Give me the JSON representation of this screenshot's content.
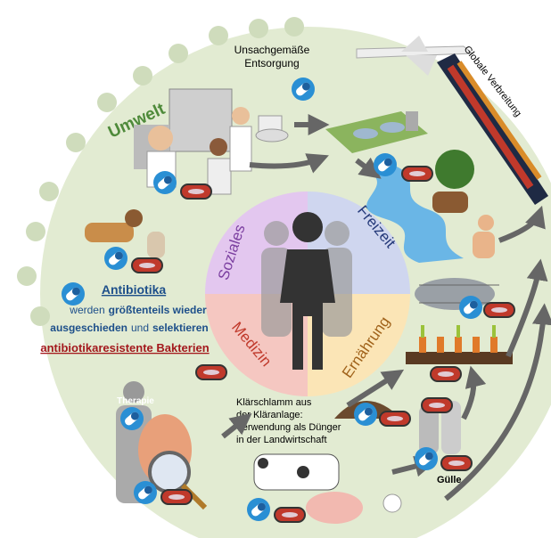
{
  "environment": "Umwelt",
  "disposal": [
    "Unsachgemäße",
    "Entsorgung"
  ],
  "global_spread": "Globale Verbreitung",
  "quadrants": [
    "Soziales",
    "Freizeit",
    "Medizin",
    "Ernährung"
  ],
  "note": {
    "title": "Antibiotika",
    "line2": [
      "werden",
      "größtenteils wieder"
    ],
    "line3": [
      "ausgeschieden",
      "und",
      "selektieren"
    ],
    "line4": "antibiotikaresistente Bakterien"
  },
  "therapy": "Therapie",
  "sludge": [
    "Klärschlamm aus",
    "der Kläranlage:",
    "Verwendung als Dünger",
    "in der Landwirtschaft"
  ],
  "manure": "Gülle"
}
